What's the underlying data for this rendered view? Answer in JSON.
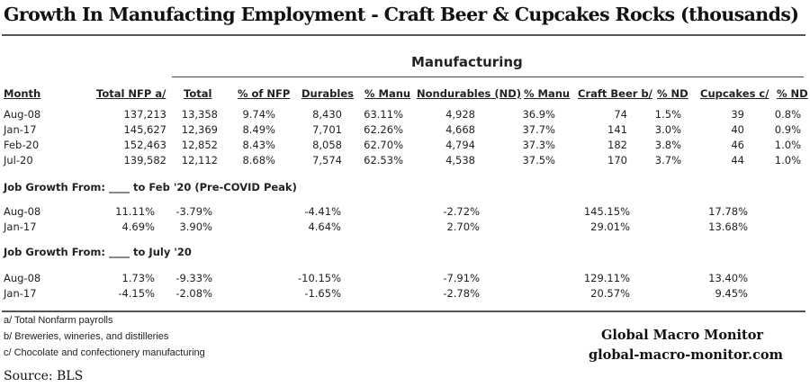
{
  "title": "Growth In Manufacting Employment -  Craft Beer & Cupcakes Rocks (thousands)",
  "group_header": "Manufacturing",
  "columns": [
    "Month",
    "Total NFP a/",
    "Total",
    "% of NFP",
    "Durables",
    "% Manu",
    "Nondurables (ND)",
    "% Manu",
    "Craft Beer b/",
    "% ND",
    "Cupcakes c/",
    "% ND"
  ],
  "levels": [
    [
      "Aug-08",
      "137,213",
      "13,358",
      "9.74%",
      "8,430",
      "63.11%",
      "4,928",
      "36.9%",
      "74",
      "1.5%",
      "39",
      "0.8%"
    ],
    [
      "Jan-17",
      "145,627",
      "12,369",
      "8.49%",
      "7,701",
      "62.26%",
      "4,668",
      "37.7%",
      "141",
      "3.0%",
      "40",
      "0.9%"
    ],
    [
      "Feb-20",
      "152,463",
      "12,852",
      "8.43%",
      "8,058",
      "62.70%",
      "4,794",
      "37.3%",
      "182",
      "3.8%",
      "46",
      "1.0%"
    ],
    [
      "Jul-20",
      "139,582",
      "12,112",
      "8.68%",
      "7,574",
      "62.53%",
      "4,538",
      "37.5%",
      "170",
      "3.7%",
      "44",
      "1.0%"
    ]
  ],
  "growth_sections": [
    {
      "label": "Job Growth From: ____ to Feb '20 (Pre-COVID Peak)",
      "rows": [
        [
          "Aug-08",
          "11.11%",
          "-3.79%",
          "-4.41%",
          "-2.72%",
          "145.15%",
          "17.78%"
        ],
        [
          "Jan-17",
          "4.69%",
          "3.90%",
          "4.64%",
          "2.70%",
          "29.01%",
          "13.68%"
        ]
      ]
    },
    {
      "label": "Job Growth From: ____ to July '20",
      "rows": [
        [
          "Aug-08",
          "1.73%",
          "-9.33%",
          "-10.15%",
          "-7.91%",
          "129.11%",
          "13.40%"
        ],
        [
          "Jan-17",
          "-4.15%",
          "-2.08%",
          "-1.65%",
          "-2.78%",
          "20.57%",
          "9.45%"
        ]
      ]
    }
  ],
  "footnotes": [
    "a/ Total Nonfarm payrolls",
    "b/ Breweries, wineries, and distilleries",
    "c/ Chocolate and confectionery manufacturing"
  ],
  "source": "Source:  BLS",
  "brand": {
    "name": "Global Macro Monitor",
    "url": "global-macro-monitor.com"
  }
}
